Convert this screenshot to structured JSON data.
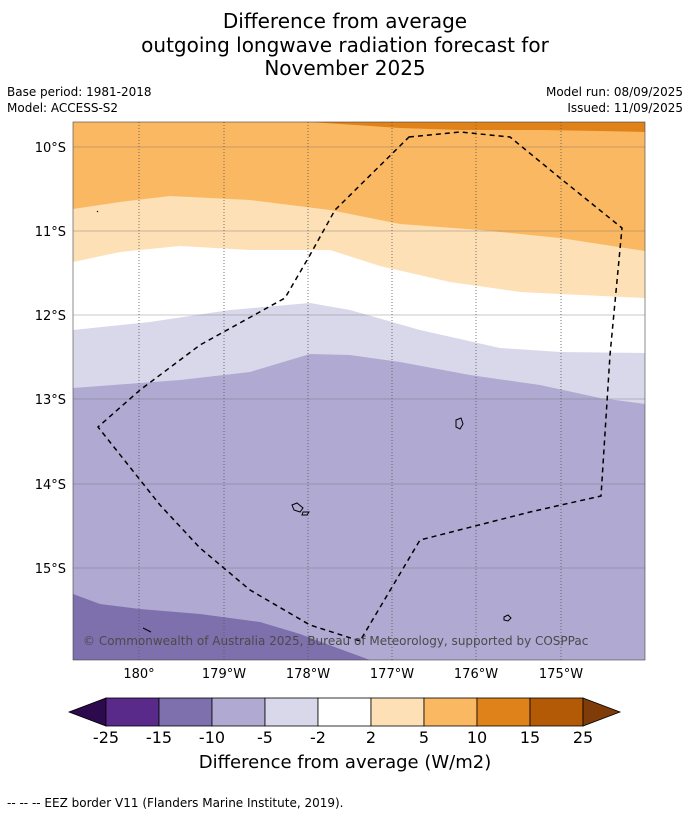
{
  "title": {
    "line1": "Difference from average",
    "line2": "outgoing longwave radiation forecast for",
    "line3": "November 2025"
  },
  "meta": {
    "base_period": "Base period: 1981-2018",
    "model": "Model: ACCESS-S2",
    "model_run": "Model run: 08/09/2025",
    "issued": "Issued: 11/09/2025"
  },
  "map": {
    "lat_labels": [
      "10°S",
      "11°S",
      "12°S",
      "13°S",
      "14°S",
      "15°S"
    ],
    "lon_labels": [
      "180°",
      "179°W",
      "178°W",
      "177°W",
      "176°W",
      "175°W"
    ],
    "copyright": "© Commonwealth of Australia 2025, Bureau of Meteorology, supported by COSPPac",
    "eez_boundary_style": "dashed-black"
  },
  "colorbar": {
    "ticks": [
      "-25",
      "-15",
      "-10",
      "-5",
      "-2",
      "2",
      "5",
      "10",
      "15",
      "25"
    ],
    "colors": [
      "#2d0a4e",
      "#5a2a8a",
      "#7e70ad",
      "#b0aad2",
      "#d8d8ea",
      "#ffffff",
      "#fde0b6",
      "#fbb862",
      "#e0821a",
      "#b35a06",
      "#7f3b08"
    ],
    "label": "Difference from average (W/m2)"
  },
  "footnote": "--  --  -- EEZ border V11 (Flanders Marine Institute, 2019)."
}
